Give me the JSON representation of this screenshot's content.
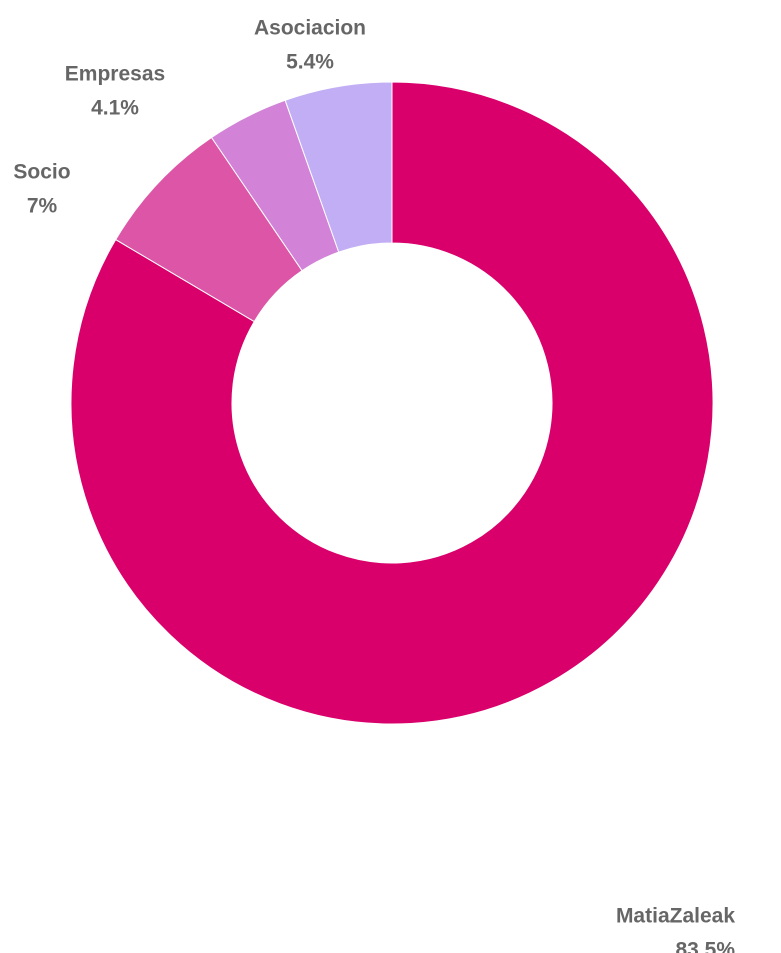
{
  "chart_data": {
    "type": "pie",
    "style": "donut",
    "title": "",
    "slices": [
      {
        "label": "MatiaZaleak",
        "value": 83.5,
        "display": "83.5%",
        "color": "#d9006c"
      },
      {
        "label": "Socio",
        "value": 7.0,
        "display": "7%",
        "color": "#dc55a6"
      },
      {
        "label": "Empresas",
        "value": 4.1,
        "display": "4.1%",
        "color": "#d282d7"
      },
      {
        "label": "Asociacion",
        "value": 5.4,
        "display": "5.4%",
        "color": "#c2aef4"
      }
    ],
    "legend": "none",
    "start": "top",
    "direction": "clockwise"
  }
}
